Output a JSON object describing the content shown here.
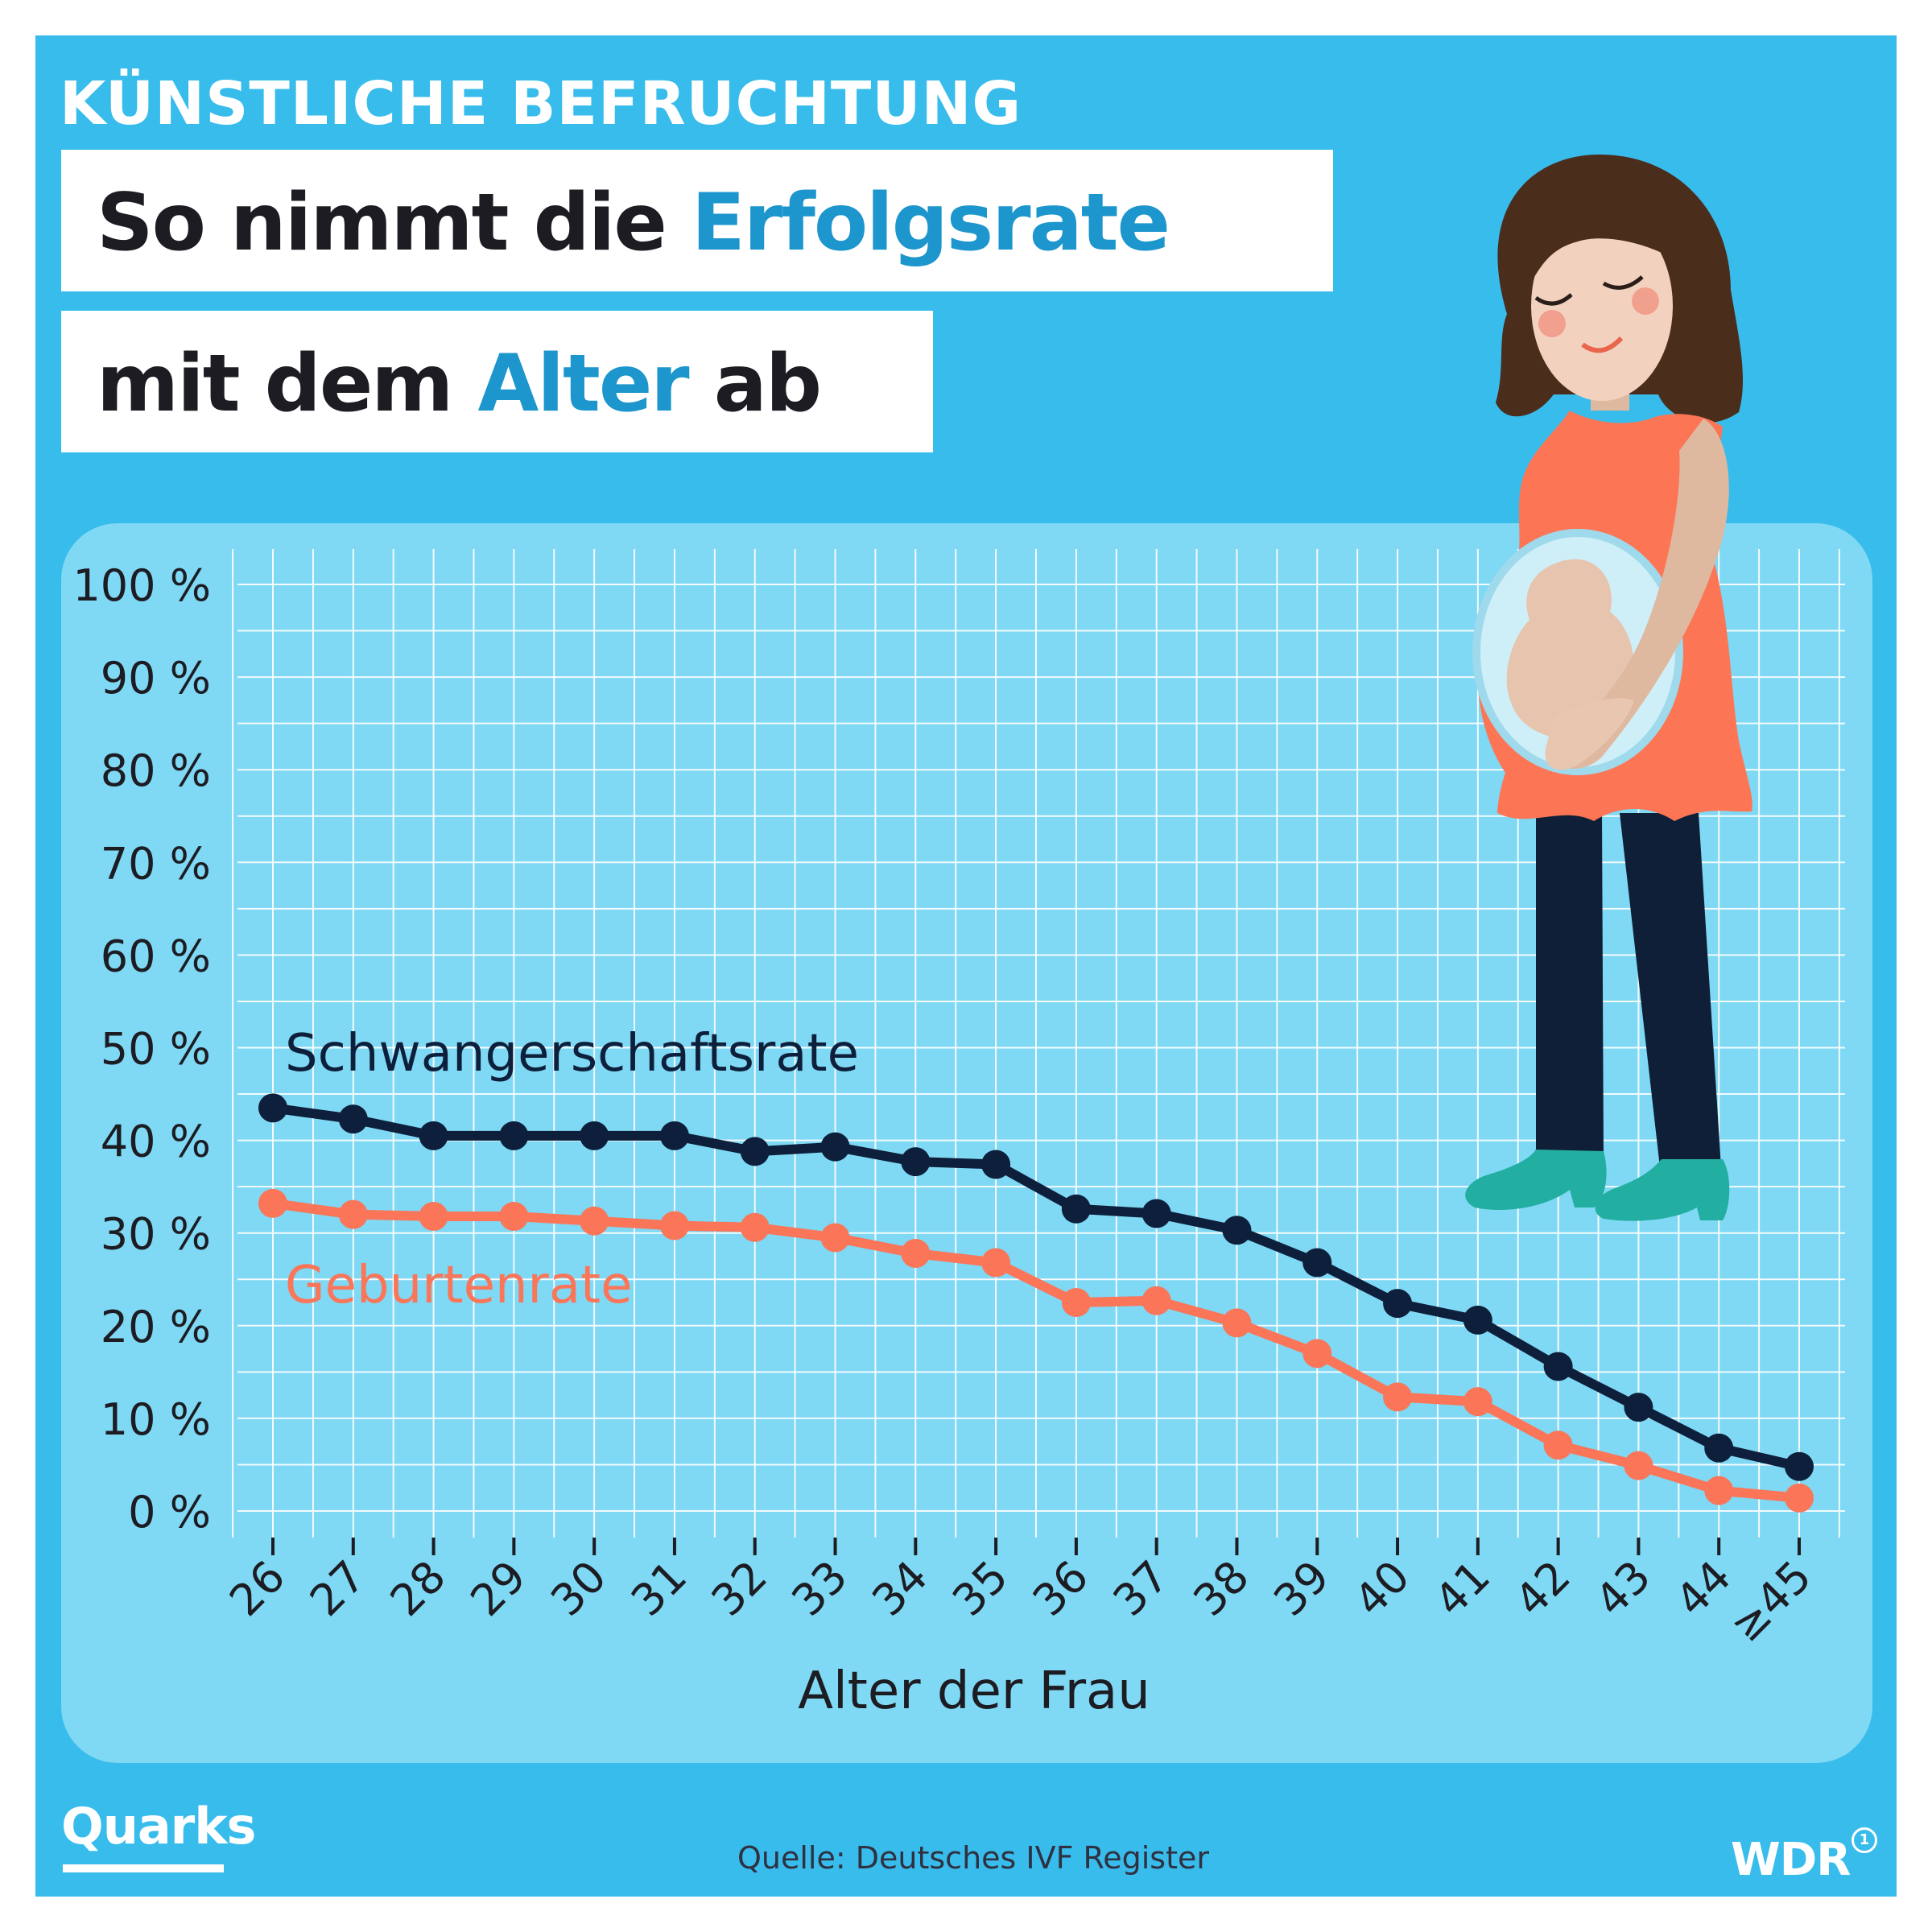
{
  "header": {
    "kicker": "KÜNSTLICHE BEFRUCHTUNG",
    "line1_a": "So nimmt die ",
    "line1_b": "Erfolgsrate",
    "line2_a": "mit dem ",
    "line2_b": "Alter",
    "line2_c": " ab"
  },
  "footer": {
    "brand": "Quarks",
    "source": "Quelle: Deutsches IVF Register",
    "broadcaster": "WDR",
    "broadcaster_mark": "1"
  },
  "colors": {
    "background": "#38bcec",
    "panel": "#7fd8f4",
    "highlight": "#1c96cc",
    "pregnancy_line": "#0d1f3a",
    "birth_line": "#fb7558"
  },
  "illustration": "pregnant-woman-with-fetus",
  "chart_data": {
    "type": "line",
    "xlabel": "Alter der Frau",
    "ylabel": "",
    "categories": [
      "26",
      "27",
      "28",
      "29",
      "30",
      "31",
      "32",
      "33",
      "34",
      "35",
      "36",
      "37",
      "38",
      "39",
      "40",
      "41",
      "42",
      "43",
      "44",
      "≥45"
    ],
    "ylim": [
      0,
      100
    ],
    "yticks": [
      "0 %",
      "10 %",
      "20 %",
      "30 %",
      "40 %",
      "50 %",
      "60 %",
      "70 %",
      "80 %",
      "90 %",
      "100 %"
    ],
    "grid": true,
    "series": [
      {
        "name": "Schwangerschaftsrate",
        "color": "#0d1f3a",
        "values": [
          43.5,
          42.3,
          40.5,
          40.5,
          40.5,
          40.5,
          38.8,
          39.3,
          37.7,
          37.4,
          32.6,
          32.1,
          30.3,
          26.8,
          22.4,
          20.6,
          15.6,
          11.2,
          6.8,
          4.8
        ]
      },
      {
        "name": "Geburtenrate",
        "color": "#fb7558",
        "values": [
          33.2,
          32.0,
          31.8,
          31.8,
          31.3,
          30.8,
          30.6,
          29.5,
          27.8,
          26.8,
          22.5,
          22.7,
          20.3,
          17.0,
          12.3,
          11.8,
          7.1,
          4.9,
          2.2,
          1.4
        ]
      }
    ]
  }
}
